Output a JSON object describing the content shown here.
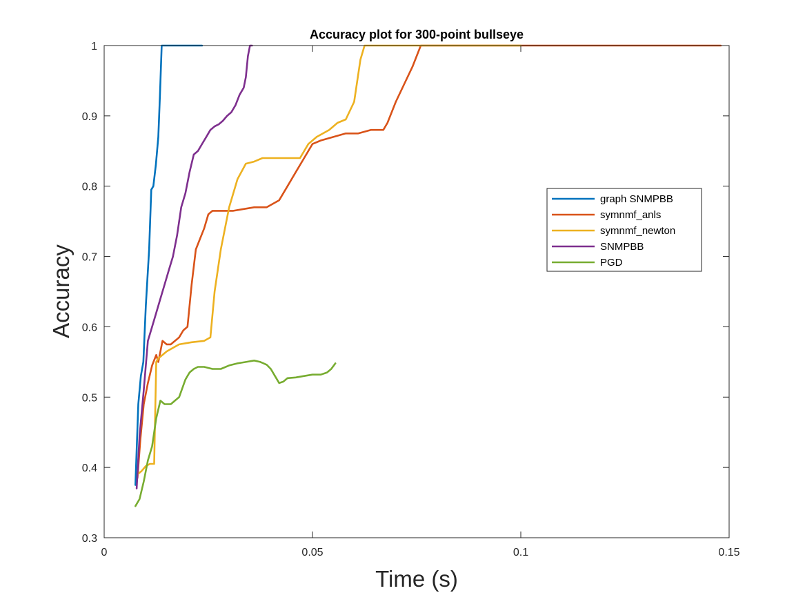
{
  "chart_data": {
    "type": "line",
    "title": "Accuracy plot for 300-point bullseye",
    "xlabel": "Time (s)",
    "ylabel": "Accuracy",
    "xlim": [
      0,
      0.15
    ],
    "ylim": [
      0.3,
      1
    ],
    "xticks": [
      0,
      0.05,
      0.1,
      0.15
    ],
    "xtick_labels": [
      "0",
      "0.05",
      "0.1",
      "0.15"
    ],
    "yticks": [
      0.3,
      0.4,
      0.5,
      0.6,
      0.7,
      0.8,
      0.9,
      1.0
    ],
    "ytick_labels": [
      "0.3",
      "0.4",
      "0.5",
      "0.6",
      "0.7",
      "0.8",
      "0.9",
      "1"
    ],
    "grid": false,
    "legend_position": "right",
    "series": [
      {
        "name": "graph SNMPBB",
        "color": "#0072BD",
        "x": [
          0.0075,
          0.0082,
          0.0088,
          0.0094,
          0.01,
          0.0104,
          0.0108,
          0.0113,
          0.0118,
          0.0124,
          0.013,
          0.0134,
          0.0138,
          0.0141,
          0.015,
          0.018,
          0.021,
          0.0235
        ],
        "y": [
          0.375,
          0.49,
          0.53,
          0.55,
          0.63,
          0.67,
          0.71,
          0.795,
          0.8,
          0.83,
          0.87,
          0.93,
          1.0,
          1.0,
          1.0,
          1.0,
          1.0,
          1.0
        ]
      },
      {
        "name": "symnmf_anls",
        "color": "#D95319",
        "x": [
          0.008,
          0.0087,
          0.0095,
          0.0105,
          0.0115,
          0.0125,
          0.013,
          0.014,
          0.015,
          0.016,
          0.017,
          0.018,
          0.019,
          0.02,
          0.021,
          0.022,
          0.023,
          0.024,
          0.025,
          0.026,
          0.027,
          0.028,
          0.029,
          0.03,
          0.031,
          0.033,
          0.036,
          0.039,
          0.042,
          0.044,
          0.046,
          0.048,
          0.05,
          0.052,
          0.055,
          0.058,
          0.061,
          0.064,
          0.067,
          0.068,
          0.07,
          0.072,
          0.074,
          0.076,
          0.08,
          0.09,
          0.1,
          0.11,
          0.125,
          0.14,
          0.148
        ],
        "y": [
          0.385,
          0.44,
          0.49,
          0.52,
          0.545,
          0.56,
          0.55,
          0.58,
          0.575,
          0.575,
          0.58,
          0.585,
          0.595,
          0.6,
          0.66,
          0.71,
          0.725,
          0.74,
          0.76,
          0.765,
          0.765,
          0.765,
          0.765,
          0.765,
          0.765,
          0.767,
          0.77,
          0.77,
          0.78,
          0.8,
          0.82,
          0.84,
          0.86,
          0.865,
          0.87,
          0.875,
          0.875,
          0.88,
          0.88,
          0.89,
          0.92,
          0.945,
          0.97,
          1.0,
          1.0,
          1.0,
          1.0,
          1.0,
          1.0,
          1.0,
          1.0
        ]
      },
      {
        "name": "symnmf_newton",
        "color": "#EDB120",
        "x": [
          0.008,
          0.009,
          0.01,
          0.011,
          0.012,
          0.0125,
          0.013,
          0.015,
          0.018,
          0.021,
          0.024,
          0.0255,
          0.0265,
          0.028,
          0.03,
          0.032,
          0.034,
          0.036,
          0.038,
          0.04,
          0.044,
          0.047,
          0.049,
          0.051,
          0.054,
          0.056,
          0.058,
          0.06,
          0.0615,
          0.0625,
          0.07,
          0.08,
          0.09,
          0.1
        ],
        "y": [
          0.39,
          0.395,
          0.402,
          0.405,
          0.405,
          0.55,
          0.555,
          0.565,
          0.575,
          0.578,
          0.58,
          0.585,
          0.65,
          0.71,
          0.77,
          0.81,
          0.832,
          0.835,
          0.84,
          0.84,
          0.84,
          0.84,
          0.86,
          0.87,
          0.88,
          0.89,
          0.895,
          0.92,
          0.98,
          1.0,
          1.0,
          1.0,
          1.0,
          1.0
        ]
      },
      {
        "name": "SNMPBB",
        "color": "#7E2F8E",
        "x": [
          0.0078,
          0.0085,
          0.0095,
          0.0105,
          0.0115,
          0.0125,
          0.0135,
          0.0145,
          0.0155,
          0.0165,
          0.0175,
          0.0185,
          0.0195,
          0.0205,
          0.0215,
          0.0225,
          0.0235,
          0.0245,
          0.0255,
          0.0265,
          0.0275,
          0.0285,
          0.0295,
          0.0305,
          0.0315,
          0.0325,
          0.0335,
          0.034,
          0.0345,
          0.035,
          0.0355
        ],
        "y": [
          0.37,
          0.445,
          0.51,
          0.58,
          0.6,
          0.62,
          0.64,
          0.66,
          0.68,
          0.7,
          0.73,
          0.77,
          0.79,
          0.82,
          0.845,
          0.85,
          0.86,
          0.87,
          0.88,
          0.885,
          0.888,
          0.893,
          0.9,
          0.905,
          0.915,
          0.93,
          0.94,
          0.955,
          0.985,
          1.0,
          1.0
        ]
      },
      {
        "name": "PGD",
        "color": "#77AC30",
        "x": [
          0.0075,
          0.0085,
          0.0095,
          0.0105,
          0.0115,
          0.0125,
          0.0135,
          0.0145,
          0.016,
          0.018,
          0.0195,
          0.0205,
          0.0215,
          0.0225,
          0.024,
          0.026,
          0.028,
          0.03,
          0.032,
          0.034,
          0.036,
          0.0375,
          0.039,
          0.04,
          0.041,
          0.042,
          0.043,
          0.044,
          0.046,
          0.048,
          0.05,
          0.052,
          0.0535,
          0.0545,
          0.0555
        ],
        "y": [
          0.345,
          0.355,
          0.38,
          0.41,
          0.43,
          0.47,
          0.495,
          0.49,
          0.49,
          0.5,
          0.525,
          0.535,
          0.54,
          0.543,
          0.543,
          0.54,
          0.54,
          0.545,
          0.548,
          0.55,
          0.552,
          0.55,
          0.546,
          0.54,
          0.53,
          0.52,
          0.522,
          0.527,
          0.528,
          0.53,
          0.532,
          0.532,
          0.535,
          0.54,
          0.548
        ]
      }
    ]
  }
}
